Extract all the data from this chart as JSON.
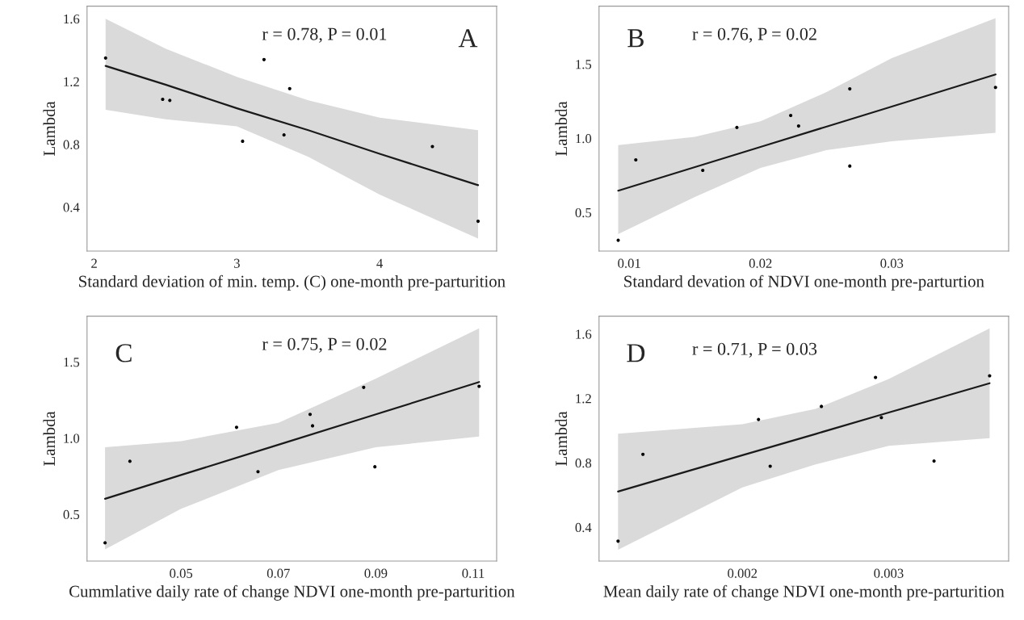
{
  "chart_data": [
    {
      "type": "scatter",
      "xlabel": "Standard deviation of min. temp. (C) one-month pre-parturition",
      "ylabel": "Lambda",
      "xlim": [
        1.95,
        4.82
      ],
      "ylim": [
        0.12,
        1.68
      ],
      "xticks": [
        2,
        3,
        4
      ],
      "yticks": [
        0.4,
        0.8,
        1.2,
        1.6
      ],
      "grid": false,
      "annotations": [
        "r = 0.78, P = 0.01",
        "A"
      ],
      "series": [
        {
          "marker": "circle",
          "color": "#000000",
          "x": [
            2.08,
            3.19,
            3.37,
            2.48,
            2.53,
            3.33,
            3.04,
            4.37,
            4.69
          ],
          "values": [
            1.35,
            1.34,
            1.155,
            1.087,
            1.08,
            0.86,
            0.82,
            0.786,
            0.31
          ]
        },
        {
          "type": "line",
          "marker": "none",
          "line_style": "solid",
          "color": "#1a1a1a",
          "x": [
            2.08,
            2.5,
            3,
            3.5,
            4,
            4.69
          ],
          "values": [
            1.3,
            1.18,
            1.03,
            0.89,
            0.74,
            0.54
          ],
          "lower": [
            1.02,
            0.96,
            0.915,
            0.72,
            0.48,
            0.2
          ],
          "upper": [
            1.6,
            1.41,
            1.23,
            1.08,
            0.97,
            0.89
          ]
        }
      ]
    },
    {
      "type": "scatter",
      "xlabel": "Standard devation of NDVI one-month pre-parturtion",
      "ylabel": "Lambda",
      "xlim": [
        0.0077,
        0.0389
      ],
      "ylim": [
        0.24,
        1.89
      ],
      "xticks": [
        0.01,
        0.02,
        0.03
      ],
      "yticks": [
        0.5,
        {
          "value": 1.0,
          "label": "1.0"
        },
        1.5
      ],
      "grid": false,
      "annotations": [
        "r = 0.76, P = 0.02",
        "B"
      ],
      "series": [
        {
          "marker": "circle",
          "color": "#000000",
          "x": [
            0.00916,
            0.0105,
            0.0156,
            0.0182,
            0.0223,
            0.0229,
            0.0268,
            0.0268,
            0.0379
          ],
          "values": [
            0.313,
            0.855,
            0.784,
            1.073,
            1.154,
            1.083,
            1.333,
            0.813,
            1.343
          ]
        },
        {
          "type": "line",
          "marker": "none",
          "line_style": "solid",
          "color": "#1a1a1a",
          "x": [
            0.00916,
            0.015,
            0.02,
            0.025,
            0.03,
            0.0379
          ],
          "values": [
            0.647,
            0.806,
            0.942,
            1.078,
            1.214,
            1.43
          ],
          "lower": [
            0.355,
            0.605,
            0.8,
            0.92,
            0.98,
            1.037
          ],
          "upper": [
            0.954,
            1.01,
            1.115,
            1.31,
            1.54,
            1.81
          ]
        }
      ]
    },
    {
      "type": "scatter",
      "xlabel": "Cummlative daily rate of change NDVI one-month pre-parturition",
      "ylabel": "Lambda",
      "xlim": [
        0.0307,
        0.1148
      ],
      "ylim": [
        0.193,
        1.8
      ],
      "xticks": [
        0.05,
        0.07,
        0.09,
        0.11
      ],
      "yticks": [
        0.5,
        {
          "value": 1.0,
          "label": "1.0"
        },
        1.5
      ],
      "grid": false,
      "annotations": [
        "r = 0.75, P = 0.02",
        "C"
      ],
      "series": [
        {
          "marker": "circle",
          "color": "#000000",
          "x": [
            0.0344,
            0.0395,
            0.0614,
            0.0658,
            0.0765,
            0.077,
            0.0875,
            0.0898,
            0.1112
          ],
          "values": [
            0.313,
            0.848,
            1.071,
            0.78,
            1.156,
            1.081,
            1.333,
            0.812,
            1.34
          ]
        },
        {
          "type": "line",
          "marker": "none",
          "line_style": "solid",
          "color": "#1a1a1a",
          "x": [
            0.0344,
            0.05,
            0.07,
            0.09,
            0.1112
          ],
          "values": [
            0.602,
            0.758,
            0.957,
            1.156,
            1.368
          ],
          "lower": [
            0.27,
            0.536,
            0.79,
            0.94,
            1.01
          ],
          "upper": [
            0.94,
            0.98,
            1.1,
            1.39,
            1.72
          ]
        }
      ]
    },
    {
      "type": "scatter",
      "xlabel": "Mean daily rate of change NDVI one-month pre-parturition",
      "ylabel": "Lambda",
      "xlim": [
        0.00102,
        0.00382
      ],
      "ylim": [
        0.19,
        1.71
      ],
      "xticks": [
        0.002,
        0.003
      ],
      "yticks": [
        0.4,
        0.8,
        1.2,
        1.6
      ],
      "grid": false,
      "annotations": [
        "r = 0.71, P = 0.03",
        "D"
      ],
      "series": [
        {
          "marker": "circle",
          "color": "#000000",
          "x": [
            0.00115,
            0.00132,
            0.00211,
            0.00219,
            0.00254,
            0.00291,
            0.00295,
            0.00331,
            0.00369
          ],
          "values": [
            0.314,
            0.853,
            1.069,
            0.779,
            1.15,
            1.33,
            1.081,
            0.811,
            1.34
          ]
        },
        {
          "type": "line",
          "marker": "none",
          "line_style": "solid",
          "color": "#1a1a1a",
          "x": [
            0.00115,
            0.002,
            0.0025,
            0.003,
            0.00369
          ],
          "values": [
            0.622,
            0.847,
            0.979,
            1.112,
            1.294
          ],
          "lower": [
            0.26,
            0.647,
            0.79,
            0.905,
            0.953
          ],
          "upper": [
            0.98,
            1.04,
            1.135,
            1.32,
            1.635
          ]
        }
      ]
    }
  ]
}
